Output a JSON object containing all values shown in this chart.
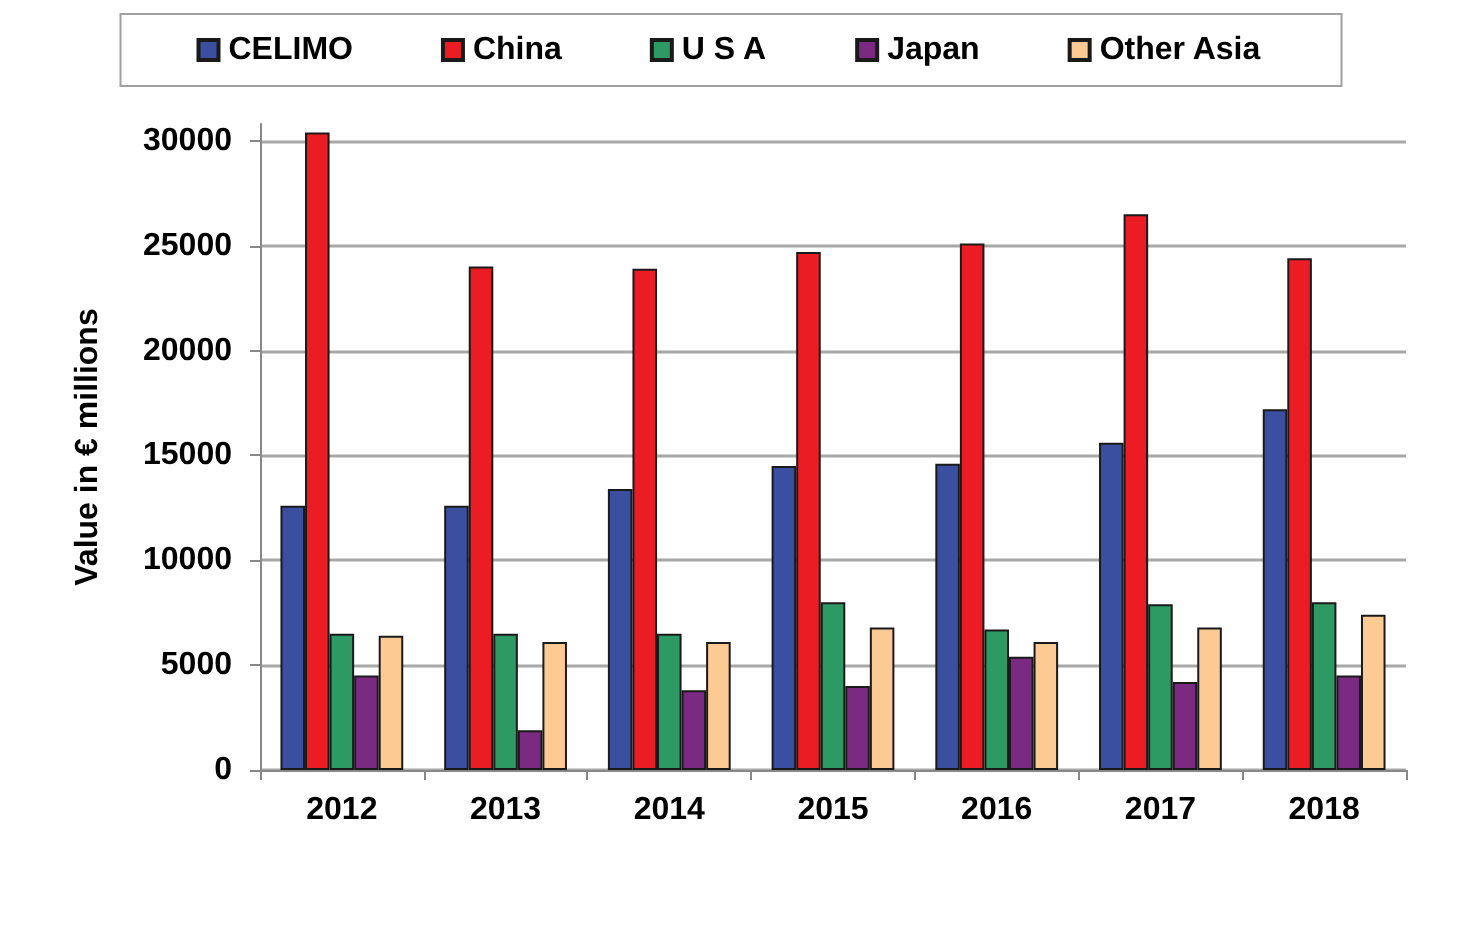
{
  "chart_data": {
    "type": "bar",
    "ylabel": "Value in € millions",
    "categories": [
      "2012",
      "2013",
      "2014",
      "2015",
      "2016",
      "2017",
      "2018"
    ],
    "series": [
      {
        "name": "CELIMO",
        "color": "#3a4fa0",
        "values": [
          12600,
          12600,
          13400,
          14500,
          14600,
          15600,
          17200
        ]
      },
      {
        "name": "China",
        "color": "#ec1c24",
        "values": [
          30400,
          24000,
          23900,
          24700,
          25100,
          26500,
          24400
        ]
      },
      {
        "name": "U S A",
        "color": "#2e9a63",
        "values": [
          6500,
          6500,
          6500,
          8000,
          6700,
          7900,
          8000
        ]
      },
      {
        "name": "Japan",
        "color": "#7b2a82",
        "values": [
          4500,
          1900,
          3800,
          4000,
          5400,
          4200,
          4500
        ]
      },
      {
        "name": "Other Asia",
        "color": "#fdca94",
        "values": [
          6400,
          6100,
          6100,
          6800,
          6100,
          6800,
          7400
        ]
      }
    ],
    "ylim": [
      0,
      30800
    ],
    "yticks": [
      0,
      5000,
      10000,
      15000,
      20000,
      25000,
      30000
    ],
    "grid": "y",
    "legend": "top"
  }
}
